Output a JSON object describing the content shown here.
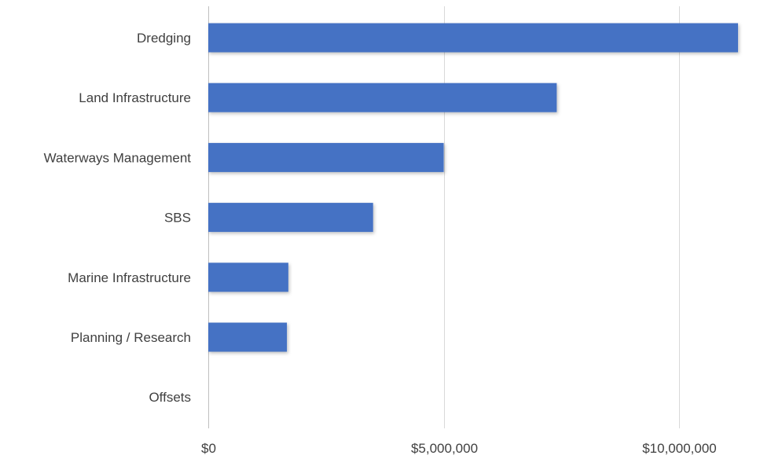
{
  "chart_data": {
    "type": "bar",
    "orientation": "horizontal",
    "categories": [
      "Dredging",
      "Land Infrastructure",
      "Waterways Management",
      "SBS",
      "Marine Infrastructure",
      "Planning / Research",
      "Offsets"
    ],
    "values": [
      11250000,
      7400000,
      5000000,
      3500000,
      1700000,
      1670000,
      0
    ],
    "title": "",
    "xlabel": "",
    "ylabel": "",
    "xlim": [
      0,
      11700000
    ],
    "x_ticks": [
      0,
      5000000,
      10000000
    ],
    "x_tick_labels": [
      "$0",
      "$5,000,000",
      "$10,000,000"
    ],
    "bar_color": "#4472c4",
    "grid": true,
    "legend": "none"
  }
}
